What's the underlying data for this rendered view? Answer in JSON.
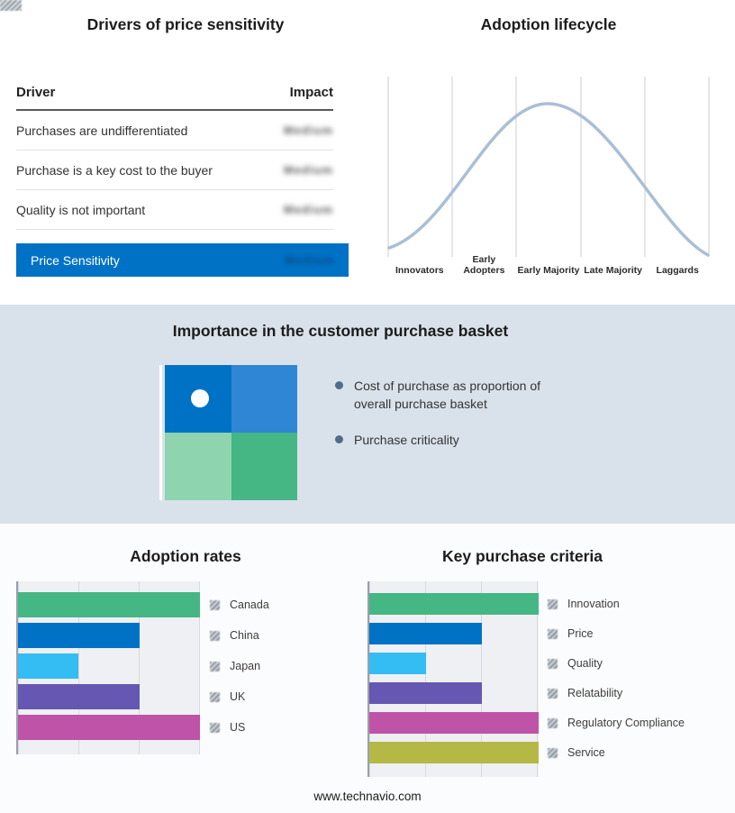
{
  "footer": {
    "url": "www.technavio.com"
  },
  "drivers": {
    "title": "Drivers of price sensitivity",
    "header": {
      "driver": "Driver",
      "impact": "Impact"
    },
    "rows": [
      {
        "label": "Purchases are undifferentiated",
        "impact": "Medium"
      },
      {
        "label": "Purchase is a key cost to the buyer",
        "impact": "Medium"
      },
      {
        "label": "Quality is not important",
        "impact": "Medium"
      }
    ],
    "highlight": {
      "label": "Price Sensitivity",
      "impact": "Medium",
      "bg": "#0072c6"
    }
  },
  "basket": {
    "title": "Importance in the customer purchase basket",
    "band_bg": "#d9e2eb",
    "bullets": [
      "Cost of purchase as proportion of overall purchase basket",
      "Purchase criticality"
    ],
    "quadrants": {
      "top_left": "#0072c6",
      "top_right": "#2e86d4",
      "bottom_left": "#8ed4ae",
      "bottom_right": "#44b784"
    }
  },
  "chart_data": [
    {
      "type": "line",
      "title": "Adoption lifecycle",
      "x": [
        "Innovators",
        "Early Adopters",
        "Early Majority",
        "Late Majority",
        "Laggards"
      ],
      "shape": "bell curve peaking over Early Majority",
      "curve_color": "#aabfd6",
      "grid": true
    },
    {
      "type": "bar",
      "title": "Adoption rates",
      "orientation": "horizontal",
      "categories": [
        "Canada",
        "China",
        "Japan",
        "UK",
        "US"
      ],
      "values": [
        3,
        2,
        1,
        2,
        3
      ],
      "xlim": [
        0,
        3
      ],
      "value_labels": "redacted",
      "colors": [
        "#44b784",
        "#0072c6",
        "#33bdf2",
        "#6657b2",
        "#bf53a8"
      ],
      "legend_position": "right",
      "grid": true
    },
    {
      "type": "bar",
      "title": "Key purchase criteria",
      "orientation": "horizontal",
      "categories": [
        "Innovation",
        "Price",
        "Quality",
        "Relatability",
        "Regulatory Compliance",
        "Service"
      ],
      "values": [
        3,
        2,
        1,
        2,
        3,
        3
      ],
      "xlim": [
        0,
        3
      ],
      "value_labels": "redacted",
      "colors": [
        "#44b784",
        "#0072c6",
        "#33bdf2",
        "#6657b2",
        "#bf53a8",
        "#b6b845"
      ],
      "legend_position": "right",
      "grid": true
    }
  ]
}
